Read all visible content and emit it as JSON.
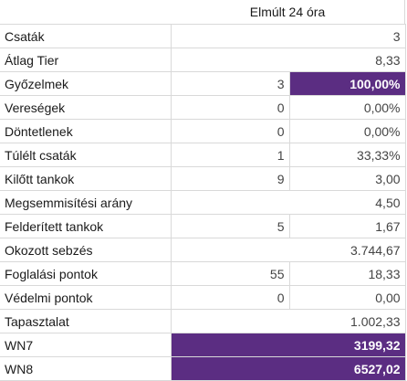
{
  "header": {
    "title": "Elmúlt 24 óra"
  },
  "colors": {
    "highlight": "#5b2d82",
    "grid": "#d9d9d9"
  },
  "rows": [
    {
      "label": "Csaták",
      "count": "",
      "value": "3",
      "merged": true,
      "highlight": false
    },
    {
      "label": "Átlag Tier",
      "count": "",
      "value": "8,33",
      "merged": true,
      "highlight": false
    },
    {
      "label": "Győzelmek",
      "count": "3",
      "value": "100,00%",
      "merged": false,
      "highlight": true
    },
    {
      "label": "Vereségek",
      "count": "0",
      "value": "0,00%",
      "merged": false,
      "highlight": false
    },
    {
      "label": "Döntetlenek",
      "count": "0",
      "value": "0,00%",
      "merged": false,
      "highlight": false
    },
    {
      "label": "Túlélt csaták",
      "count": "1",
      "value": "33,33%",
      "merged": false,
      "highlight": false
    },
    {
      "label": "Kilőtt tankok",
      "count": "9",
      "value": "3,00",
      "merged": false,
      "highlight": false
    },
    {
      "label": "Megsemmisítési arány",
      "count": "",
      "value": "4,50",
      "merged": true,
      "highlight": false
    },
    {
      "label": "Felderített tankok",
      "count": "5",
      "value": "1,67",
      "merged": false,
      "highlight": false
    },
    {
      "label": "Okozott sebzés",
      "count": "",
      "value": "3.744,67",
      "merged": true,
      "highlight": false
    },
    {
      "label": "Foglalási pontok",
      "count": "55",
      "value": "18,33",
      "merged": false,
      "highlight": false
    },
    {
      "label": "Védelmi pontok",
      "count": "0",
      "value": "0,00",
      "merged": false,
      "highlight": false
    },
    {
      "label": "Tapasztalat",
      "count": "",
      "value": "1.002,33",
      "merged": true,
      "highlight": false
    },
    {
      "label": "WN7",
      "count": "",
      "value": "3199,32",
      "merged": true,
      "highlight": true
    },
    {
      "label": "WN8",
      "count": "",
      "value": "6527,02",
      "merged": true,
      "highlight": true
    }
  ]
}
